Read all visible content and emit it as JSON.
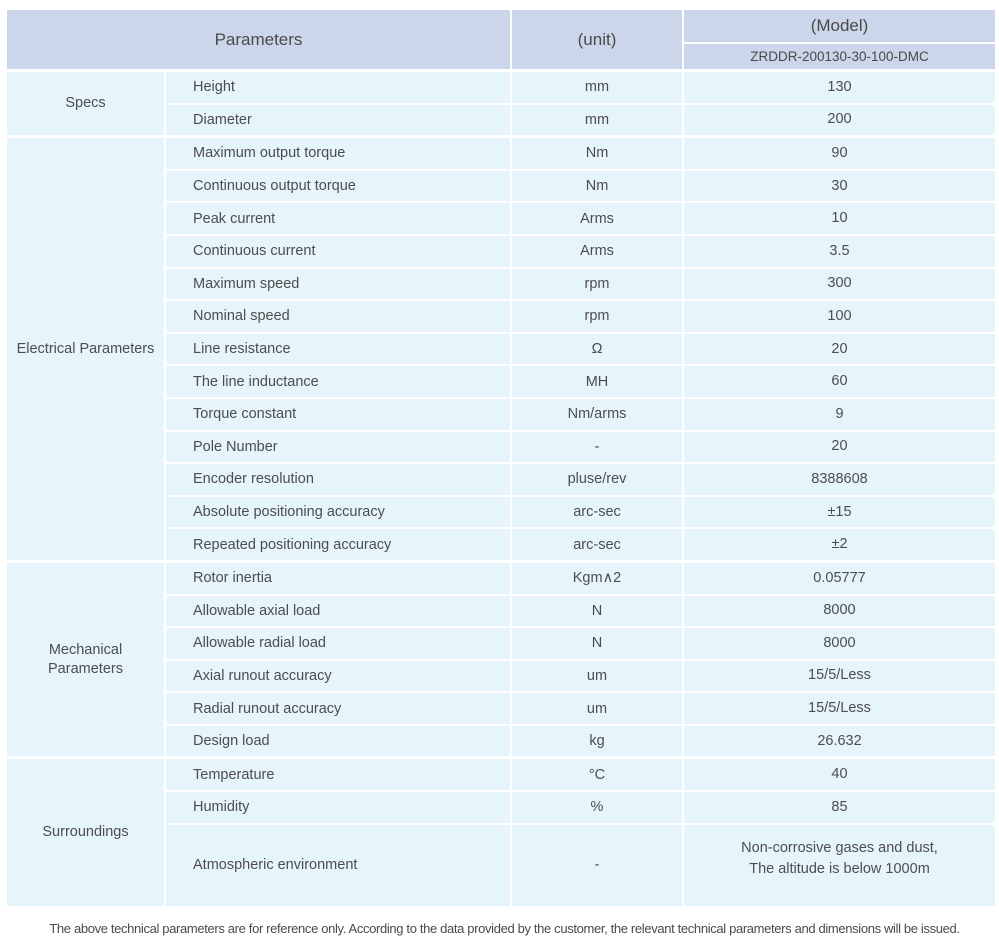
{
  "colors": {
    "header_bg": "#ccd6eb",
    "row_bg": "#e6f4fc",
    "text": "#4d4d4d"
  },
  "table": {
    "header": {
      "parameters_label": "Parameters",
      "unit_label": "(unit)",
      "model_label": "(Model)",
      "model_value": "ZRDDR-200130-30-100-DMC"
    },
    "sections": [
      {
        "group": "Specs",
        "rows": [
          {
            "name": "Height",
            "unit": "mm",
            "value": "130"
          },
          {
            "name": "Diameter",
            "unit": "mm",
            "value": "200"
          }
        ]
      },
      {
        "group": "Electrical Parameters",
        "rows": [
          {
            "name": "Maximum output torque",
            "unit": "Nm",
            "value": "90"
          },
          {
            "name": "Continuous output torque",
            "unit": "Nm",
            "value": "30"
          },
          {
            "name": "Peak current",
            "unit": "Arms",
            "value": "10"
          },
          {
            "name": "Continuous current",
            "unit": "Arms",
            "value": "3.5"
          },
          {
            "name": "Maximum speed",
            "unit": "rpm",
            "value": "300"
          },
          {
            "name": "Nominal speed",
            "unit": "rpm",
            "value": "100"
          },
          {
            "name": "Line resistance",
            "unit": "Ω",
            "value": "20"
          },
          {
            "name": "The line inductance",
            "unit": "MH",
            "value": "60"
          },
          {
            "name": "Torque constant",
            "unit": "Nm/arms",
            "value": "9"
          },
          {
            "name": "Pole Number",
            "unit": "-",
            "value": "20"
          },
          {
            "name": "Encoder resolution",
            "unit": "pluse/rev",
            "value": "8388608"
          },
          {
            "name": "Absolute positioning accuracy",
            "unit": "arc-sec",
            "value": "±15"
          },
          {
            "name": "Repeated positioning accuracy",
            "unit": "arc-sec",
            "value": "±2"
          }
        ]
      },
      {
        "group": "Mechanical Parameters",
        "rows": [
          {
            "name": "Rotor inertia",
            "unit": "Kgm∧2",
            "value": "0.05777"
          },
          {
            "name": "Allowable axial load",
            "unit": "N",
            "value": "8000"
          },
          {
            "name": "Allowable radial load",
            "unit": "N",
            "value": "8000"
          },
          {
            "name": "Axial runout accuracy",
            "unit": "um",
            "value": "15/5/Less"
          },
          {
            "name": "Radial runout accuracy",
            "unit": "um",
            "value": "15/5/Less"
          },
          {
            "name": "Design load",
            "unit": "kg",
            "value": "26.632"
          }
        ]
      },
      {
        "group": "Surroundings",
        "rows": [
          {
            "name": "Temperature",
            "unit": "°C",
            "value": "40"
          },
          {
            "name": "Humidity",
            "unit": "%",
            "value": "85"
          },
          {
            "name": "Atmospheric environment",
            "unit": "-",
            "value": "Non-corrosive gases and dust,\nThe altitude is below 1000m",
            "tall": true
          }
        ]
      }
    ],
    "footnote": "The above technical parameters are for reference only. According to the data provided by the customer, the relevant technical parameters and dimensions will be issued."
  }
}
